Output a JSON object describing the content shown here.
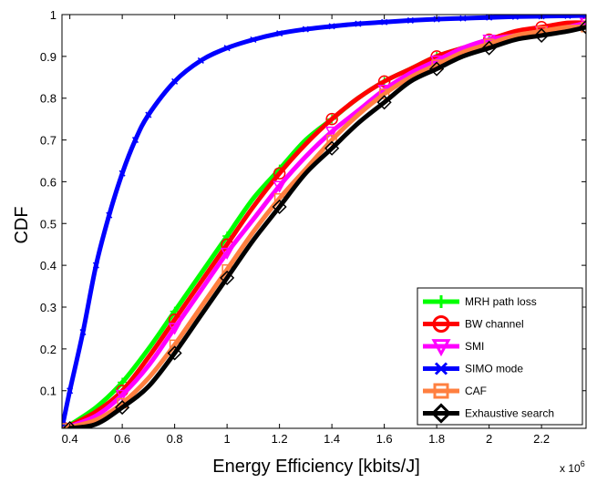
{
  "chart_data": {
    "type": "line",
    "title": "",
    "xlabel": "Energy Efficiency [kbits/J]",
    "ylabel": "CDF",
    "x_multiplier_label": "x 10",
    "x_multiplier_exponent": "6",
    "xlim": [
      0.37,
      2.37
    ],
    "ylim": [
      0.01,
      1.0
    ],
    "x_ticks": [
      {
        "value": 0.4,
        "label": "0.4"
      },
      {
        "value": 0.6,
        "label": "0.6"
      },
      {
        "value": 0.8,
        "label": "0.8"
      },
      {
        "value": 1.0,
        "label": "1"
      },
      {
        "value": 1.2,
        "label": "1.2"
      },
      {
        "value": 1.4,
        "label": "1.4"
      },
      {
        "value": 1.6,
        "label": "1.6"
      },
      {
        "value": 1.8,
        "label": "1.8"
      },
      {
        "value": 2.0,
        "label": "2"
      },
      {
        "value": 2.2,
        "label": "2.2"
      }
    ],
    "y_ticks": [
      {
        "value": 0.1,
        "label": "0.1"
      },
      {
        "value": 0.2,
        "label": "0.2"
      },
      {
        "value": 0.3,
        "label": "0.3"
      },
      {
        "value": 0.4,
        "label": "0.4"
      },
      {
        "value": 0.5,
        "label": "0.5"
      },
      {
        "value": 0.6,
        "label": "0.6"
      },
      {
        "value": 0.7,
        "label": "0.7"
      },
      {
        "value": 0.8,
        "label": "0.8"
      },
      {
        "value": 0.9,
        "label": "0.9"
      },
      {
        "value": 1.0,
        "label": "1"
      }
    ],
    "grid": false,
    "legend_position": "bottom-right",
    "series": [
      {
        "name": "MRH path loss",
        "color": "#00ff00",
        "marker": "plus",
        "x": [
          0.38,
          0.5,
          0.6,
          0.7,
          0.8,
          0.9,
          1.0,
          1.1,
          1.2,
          1.3,
          1.4,
          1.5,
          1.6,
          1.7,
          1.8,
          1.9,
          2.0,
          2.1,
          2.2,
          2.3,
          2.37
        ],
        "y": [
          0.01,
          0.06,
          0.12,
          0.2,
          0.29,
          0.38,
          0.47,
          0.56,
          0.63,
          0.7,
          0.75,
          0.8,
          0.84,
          0.87,
          0.9,
          0.92,
          0.94,
          0.95,
          0.96,
          0.97,
          0.98
        ]
      },
      {
        "name": "BW channel",
        "color": "#ff0000",
        "marker": "circle",
        "x": [
          0.38,
          0.5,
          0.6,
          0.7,
          0.8,
          0.9,
          1.0,
          1.1,
          1.2,
          1.3,
          1.4,
          1.5,
          1.6,
          1.7,
          1.8,
          1.9,
          2.0,
          2.1,
          2.2,
          2.3,
          2.37
        ],
        "y": [
          0.01,
          0.05,
          0.1,
          0.18,
          0.27,
          0.36,
          0.45,
          0.54,
          0.62,
          0.69,
          0.75,
          0.8,
          0.84,
          0.87,
          0.9,
          0.92,
          0.94,
          0.96,
          0.97,
          0.98,
          0.98
        ]
      },
      {
        "name": "SMI",
        "color": "#ff00ff",
        "marker": "triangle-down",
        "x": [
          0.38,
          0.5,
          0.6,
          0.7,
          0.8,
          0.9,
          1.0,
          1.1,
          1.2,
          1.3,
          1.4,
          1.5,
          1.6,
          1.7,
          1.8,
          1.9,
          2.0,
          2.1,
          2.2,
          2.3,
          2.37
        ],
        "y": [
          0.01,
          0.04,
          0.09,
          0.16,
          0.25,
          0.34,
          0.43,
          0.51,
          0.59,
          0.66,
          0.72,
          0.77,
          0.82,
          0.86,
          0.89,
          0.92,
          0.94,
          0.95,
          0.96,
          0.97,
          0.98
        ]
      },
      {
        "name": "SIMO mode",
        "color": "#0000ff",
        "marker": "x",
        "x": [
          0.37,
          0.4,
          0.45,
          0.5,
          0.55,
          0.6,
          0.65,
          0.7,
          0.8,
          0.9,
          1.0,
          1.1,
          1.2,
          1.3,
          1.4,
          1.5,
          1.6,
          1.7,
          1.8,
          1.9,
          2.0,
          2.1,
          2.2,
          2.3,
          2.37
        ],
        "y": [
          0.01,
          0.1,
          0.24,
          0.4,
          0.52,
          0.62,
          0.7,
          0.76,
          0.84,
          0.89,
          0.92,
          0.94,
          0.955,
          0.965,
          0.972,
          0.978,
          0.982,
          0.986,
          0.989,
          0.991,
          0.993,
          0.995,
          0.996,
          0.997,
          0.998
        ]
      },
      {
        "name": "CAF",
        "color": "#ff7f3f",
        "marker": "square",
        "x": [
          0.38,
          0.5,
          0.6,
          0.7,
          0.8,
          0.9,
          1.0,
          1.1,
          1.2,
          1.3,
          1.4,
          1.5,
          1.6,
          1.7,
          1.8,
          1.9,
          2.0,
          2.1,
          2.2,
          2.3,
          2.37
        ],
        "y": [
          0.01,
          0.03,
          0.07,
          0.13,
          0.21,
          0.3,
          0.39,
          0.48,
          0.56,
          0.63,
          0.7,
          0.76,
          0.81,
          0.85,
          0.88,
          0.91,
          0.93,
          0.95,
          0.96,
          0.97,
          0.97
        ]
      },
      {
        "name": "Exhaustive search",
        "color": "#000000",
        "marker": "diamond",
        "x": [
          0.4,
          0.5,
          0.6,
          0.7,
          0.8,
          0.9,
          1.0,
          1.1,
          1.2,
          1.3,
          1.4,
          1.5,
          1.6,
          1.7,
          1.8,
          1.9,
          2.0,
          2.1,
          2.2,
          2.3,
          2.37
        ],
        "y": [
          0.01,
          0.02,
          0.06,
          0.11,
          0.19,
          0.28,
          0.37,
          0.46,
          0.54,
          0.62,
          0.68,
          0.74,
          0.79,
          0.84,
          0.87,
          0.9,
          0.92,
          0.94,
          0.95,
          0.96,
          0.97
        ]
      }
    ]
  }
}
